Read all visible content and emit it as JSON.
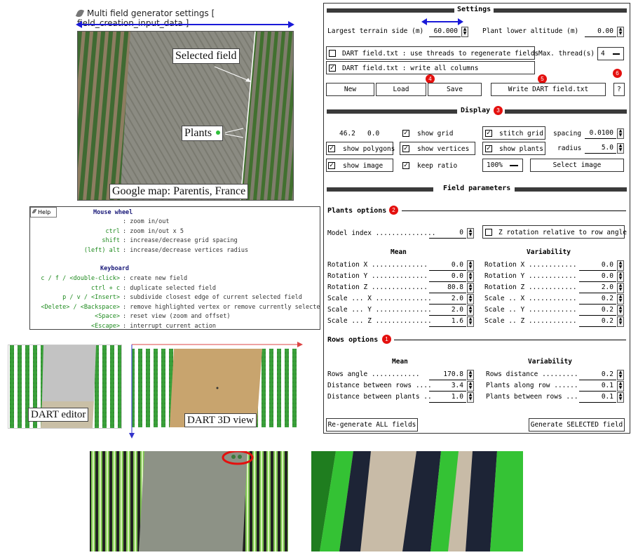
{
  "window": {
    "title": "Multi field generator settings [ field_creation_input_data ]"
  },
  "map_annotations": {
    "selected_field": "Selected field",
    "plants": "Plants",
    "caption": "Google map: Parentis, France"
  },
  "help": {
    "button": "Help",
    "mouse_header": "Mouse wheel",
    "mouse_rows": [
      {
        "key": "",
        "desc": ": zoom in/out"
      },
      {
        "key": "ctrl",
        "desc": ": zoom in/out x 5"
      },
      {
        "key": "shift",
        "desc": ": increase/decrease grid spacing"
      },
      {
        "key": "(left) alt",
        "desc": ": increase/decrease vertices radius"
      }
    ],
    "keyboard_header": "Keyboard",
    "keyboard_rows": [
      {
        "key": "c / f / <double-click>",
        "desc": ": create new field"
      },
      {
        "key": "ctrl + c",
        "desc": ": duplicate selected field"
      },
      {
        "key": "p / v / <Insert>",
        "desc": ": subdivide closest edge of current selected field"
      },
      {
        "key": "<Delete> / <Backspace>",
        "desc": ": remove highlighted vertex or remove currently selected field"
      },
      {
        "key": "<Space>",
        "desc": ": reset view (zoom and offset)"
      },
      {
        "key": "<Escape>",
        "desc": ": interrupt current action"
      }
    ]
  },
  "dart": {
    "editor_label": "DART editor",
    "view_label": "DART 3D view"
  },
  "settings": {
    "title": "Settings",
    "largest_terrain_label": "Largest terrain side (m)",
    "largest_terrain_value": "60.000",
    "plant_altitude_label": "Plant lower altitude (m)",
    "plant_altitude_value": "0.00",
    "threads_check_label": "DART field.txt : use threads to regenerate fields",
    "threads_checked": false,
    "max_threads_label": "Max. thread(s)",
    "max_threads_value": "4",
    "write_columns_label": "DART field.txt : write all columns",
    "write_columns_checked": true,
    "btn_new": "New",
    "btn_load": "Load",
    "btn_save": "Save",
    "btn_write": "Write DART field.txt",
    "btn_help": "?",
    "markers": {
      "save": "4",
      "write": "5",
      "help": "6"
    }
  },
  "display": {
    "title": "Display",
    "marker": "3",
    "coord_x": "46.2",
    "coord_y": "0.0",
    "show_grid": "show grid",
    "stitch_grid": "stitch grid",
    "spacing_label": "spacing",
    "spacing_value": "0.0100",
    "show_polygons": "show polygons",
    "show_vertices": "show vertices",
    "show_plants": "show plants",
    "radius_label": "radius",
    "radius_value": "5.0",
    "show_image": "show image",
    "keep_ratio": "keep ratio",
    "zoom_value": "100%",
    "select_image": "Select image"
  },
  "field_params": {
    "title": "Field parameters",
    "plants_title": "Plants options",
    "plants_marker": "2",
    "model_index_label": "Model index ...............",
    "model_index_value": "0",
    "z_rotation_label": "Z rotation relative to row angle",
    "mean_header": "Mean",
    "variability_header": "Variability",
    "plant_rows": [
      {
        "label": "Rotation  X ..............",
        "mean": "0.0",
        "vlabel": "Rotation X ............",
        "var": "0.0"
      },
      {
        "label": "Rotation  Y ..............",
        "mean": "0.0",
        "vlabel": "Rotation Y ............",
        "var": "0.0"
      },
      {
        "label": "Rotation  Z ..............",
        "mean": "80.8",
        "vlabel": "Rotation Z ............",
        "var": "2.0"
      },
      {
        "label": "Scale ... X ..............",
        "mean": "2.0",
        "vlabel": "Scale .. X ............",
        "var": "0.2"
      },
      {
        "label": "Scale ... Y ..............",
        "mean": "2.0",
        "vlabel": "Scale .. Y ............",
        "var": "0.2"
      },
      {
        "label": "Scale ... Z ..............",
        "mean": "1.6",
        "vlabel": "Scale .. Z ............",
        "var": "0.2"
      }
    ],
    "rows_title": "Rows options",
    "rows_marker": "1",
    "rows_mean_header": "Mean",
    "rows_var_header": "Variability",
    "row_rows": [
      {
        "label": "Rows angle ............",
        "mean": "170.8",
        "vlabel": "Rows distance .........",
        "var": "0.2"
      },
      {
        "label": "Distance between rows ....",
        "mean": "3.4",
        "vlabel": "Plants along row ......",
        "var": "0.1"
      },
      {
        "label": "Distance between plants ..",
        "mean": "1.0",
        "vlabel": "Plants between rows ...",
        "var": "0.1"
      }
    ],
    "btn_regen_all": "Re-generate ALL fields",
    "btn_generate_selected": "Generate SELECTED field"
  },
  "colors": {
    "marker_red": "#e4100e",
    "arrow_blue": "#1a1ad8",
    "plant_green": "#2fbf3a"
  }
}
